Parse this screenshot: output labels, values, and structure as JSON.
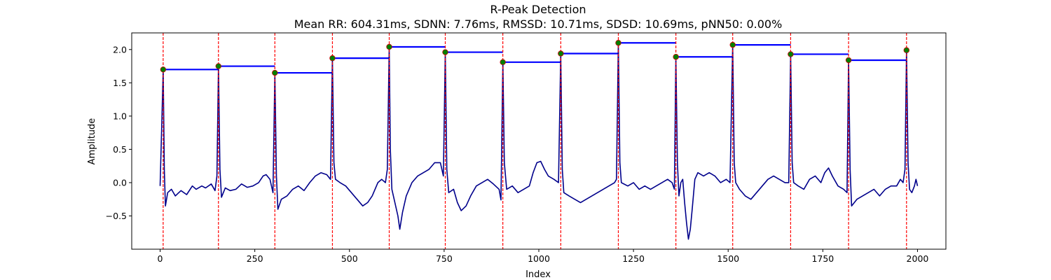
{
  "chart_data": {
    "type": "line",
    "title": "R-Peak Detection",
    "subtitle": "Mean RR: 604.31ms, SDNN: 7.76ms, RMSSD: 10.71ms, SDSD: 10.69ms, pNN50: 0.00%",
    "xlabel": "Index",
    "ylabel": "Amplitude",
    "xlim": [
      -75,
      2075
    ],
    "ylim": [
      -1.0,
      2.25
    ],
    "x_ticks": [
      0,
      250,
      500,
      750,
      1000,
      1250,
      1500,
      1750,
      2000
    ],
    "y_ticks": [
      -0.5,
      0.0,
      0.5,
      1.0,
      1.5,
      2.0
    ],
    "x_tick_labels": [
      "0",
      "250",
      "500",
      "750",
      "1000",
      "1250",
      "1500",
      "1750",
      "2000"
    ],
    "y_tick_labels": [
      "−0.5",
      "0.0",
      "0.5",
      "1.0",
      "1.5",
      "2.0"
    ],
    "grid": false,
    "colors": {
      "signal": "#00008b",
      "peak_line": "#ff0000",
      "peak_marker_fill": "#008000",
      "peak_marker_edge": "#cc0000",
      "rr_segment": "#0000ff"
    },
    "signal_samples": [
      [
        0,
        -0.05
      ],
      [
        4,
        0.8
      ],
      [
        8,
        1.7
      ],
      [
        11,
        0.2
      ],
      [
        14,
        -0.35
      ],
      [
        20,
        -0.15
      ],
      [
        30,
        -0.1
      ],
      [
        40,
        -0.2
      ],
      [
        55,
        -0.12
      ],
      [
        70,
        -0.18
      ],
      [
        85,
        -0.05
      ],
      [
        95,
        -0.1
      ],
      [
        110,
        -0.05
      ],
      [
        120,
        -0.08
      ],
      [
        135,
        -0.02
      ],
      [
        145,
        -0.12
      ],
      [
        150,
        0.1
      ],
      [
        154,
        1.75
      ],
      [
        158,
        0.2
      ],
      [
        162,
        -0.22
      ],
      [
        172,
        -0.08
      ],
      [
        185,
        -0.12
      ],
      [
        200,
        -0.1
      ],
      [
        215,
        -0.02
      ],
      [
        230,
        -0.07
      ],
      [
        245,
        -0.05
      ],
      [
        260,
        0.0
      ],
      [
        272,
        0.1
      ],
      [
        280,
        0.12
      ],
      [
        290,
        0.05
      ],
      [
        298,
        -0.15
      ],
      [
        303,
        1.65
      ],
      [
        307,
        0.1
      ],
      [
        311,
        -0.4
      ],
      [
        320,
        -0.25
      ],
      [
        335,
        -0.2
      ],
      [
        350,
        -0.1
      ],
      [
        365,
        -0.05
      ],
      [
        380,
        -0.12
      ],
      [
        395,
        0.0
      ],
      [
        410,
        0.1
      ],
      [
        425,
        0.15
      ],
      [
        440,
        0.12
      ],
      [
        450,
        0.05
      ],
      [
        455,
        1.87
      ],
      [
        459,
        0.3
      ],
      [
        463,
        0.05
      ],
      [
        475,
        0.0
      ],
      [
        490,
        -0.05
      ],
      [
        505,
        -0.15
      ],
      [
        520,
        -0.25
      ],
      [
        535,
        -0.35
      ],
      [
        548,
        -0.3
      ],
      [
        560,
        -0.2
      ],
      [
        575,
        0.0
      ],
      [
        585,
        0.05
      ],
      [
        595,
        0.0
      ],
      [
        600,
        0.2
      ],
      [
        605,
        2.04
      ],
      [
        608,
        0.5
      ],
      [
        612,
        -0.1
      ],
      [
        620,
        -0.3
      ],
      [
        628,
        -0.5
      ],
      [
        633,
        -0.7
      ],
      [
        640,
        -0.45
      ],
      [
        650,
        -0.2
      ],
      [
        665,
        0.0
      ],
      [
        680,
        0.1
      ],
      [
        695,
        0.15
      ],
      [
        710,
        0.2
      ],
      [
        725,
        0.3
      ],
      [
        740,
        0.3
      ],
      [
        748,
        0.1
      ],
      [
        753,
        1.96
      ],
      [
        757,
        0.2
      ],
      [
        762,
        -0.15
      ],
      [
        775,
        -0.1
      ],
      [
        785,
        -0.3
      ],
      [
        795,
        -0.42
      ],
      [
        808,
        -0.35
      ],
      [
        820,
        -0.2
      ],
      [
        835,
        -0.05
      ],
      [
        850,
        0.0
      ],
      [
        865,
        0.05
      ],
      [
        880,
        -0.02
      ],
      [
        895,
        -0.1
      ],
      [
        900,
        -0.26
      ],
      [
        905,
        1.81
      ],
      [
        909,
        0.3
      ],
      [
        915,
        -0.1
      ],
      [
        930,
        -0.05
      ],
      [
        945,
        -0.15
      ],
      [
        960,
        -0.1
      ],
      [
        975,
        -0.05
      ],
      [
        985,
        0.15
      ],
      [
        995,
        0.3
      ],
      [
        1005,
        0.32
      ],
      [
        1015,
        0.2
      ],
      [
        1025,
        0.1
      ],
      [
        1040,
        0.05
      ],
      [
        1052,
        0.0
      ],
      [
        1058,
        1.94
      ],
      [
        1062,
        0.2
      ],
      [
        1066,
        -0.15
      ],
      [
        1080,
        -0.2
      ],
      [
        1095,
        -0.25
      ],
      [
        1110,
        -0.3
      ],
      [
        1125,
        -0.25
      ],
      [
        1140,
        -0.2
      ],
      [
        1155,
        -0.15
      ],
      [
        1170,
        -0.1
      ],
      [
        1185,
        -0.05
      ],
      [
        1200,
        0.0
      ],
      [
        1205,
        0.05
      ],
      [
        1210,
        2.1
      ],
      [
        1214,
        0.3
      ],
      [
        1218,
        0.0
      ],
      [
        1235,
        -0.05
      ],
      [
        1250,
        0.0
      ],
      [
        1265,
        -0.1
      ],
      [
        1280,
        -0.05
      ],
      [
        1295,
        -0.1
      ],
      [
        1310,
        -0.05
      ],
      [
        1325,
        0.0
      ],
      [
        1340,
        0.05
      ],
      [
        1352,
        0.0
      ],
      [
        1358,
        -0.1
      ],
      [
        1362,
        1.89
      ],
      [
        1366,
        0.3
      ],
      [
        1370,
        -0.2
      ],
      [
        1375,
        0.0
      ],
      [
        1380,
        0.05
      ],
      [
        1385,
        -0.3
      ],
      [
        1390,
        -0.6
      ],
      [
        1395,
        -0.85
      ],
      [
        1400,
        -0.7
      ],
      [
        1405,
        -0.4
      ],
      [
        1412,
        0.05
      ],
      [
        1420,
        0.15
      ],
      [
        1435,
        0.1
      ],
      [
        1450,
        0.15
      ],
      [
        1465,
        0.1
      ],
      [
        1480,
        0.0
      ],
      [
        1495,
        0.05
      ],
      [
        1505,
        0.0
      ],
      [
        1512,
        2.07
      ],
      [
        1516,
        0.3
      ],
      [
        1520,
        0.0
      ],
      [
        1530,
        -0.1
      ],
      [
        1545,
        -0.2
      ],
      [
        1560,
        -0.25
      ],
      [
        1575,
        -0.15
      ],
      [
        1590,
        -0.05
      ],
      [
        1605,
        0.05
      ],
      [
        1620,
        0.1
      ],
      [
        1635,
        0.05
      ],
      [
        1650,
        0.0
      ],
      [
        1660,
        0.0
      ],
      [
        1665,
        1.93
      ],
      [
        1669,
        0.3
      ],
      [
        1673,
        0.0
      ],
      [
        1685,
        -0.05
      ],
      [
        1700,
        -0.1
      ],
      [
        1715,
        0.05
      ],
      [
        1730,
        0.1
      ],
      [
        1745,
        0.0
      ],
      [
        1755,
        0.15
      ],
      [
        1765,
        0.22
      ],
      [
        1775,
        0.1
      ],
      [
        1790,
        -0.05
      ],
      [
        1805,
        -0.1
      ],
      [
        1814,
        -0.15
      ],
      [
        1818,
        1.84
      ],
      [
        1822,
        0.2
      ],
      [
        1826,
        -0.35
      ],
      [
        1840,
        -0.25
      ],
      [
        1855,
        -0.2
      ],
      [
        1870,
        -0.15
      ],
      [
        1885,
        -0.1
      ],
      [
        1900,
        -0.2
      ],
      [
        1915,
        -0.1
      ],
      [
        1930,
        -0.05
      ],
      [
        1945,
        -0.05
      ],
      [
        1955,
        0.05
      ],
      [
        1962,
        0.0
      ],
      [
        1967,
        0.2
      ],
      [
        1971,
        1.99
      ],
      [
        1975,
        0.3
      ],
      [
        1979,
        -0.1
      ],
      [
        1985,
        -0.15
      ],
      [
        1992,
        -0.05
      ],
      [
        1996,
        0.05
      ],
      [
        2000,
        -0.05
      ]
    ],
    "r_peaks": [
      {
        "x": 8,
        "y": 1.7
      },
      {
        "x": 154,
        "y": 1.75
      },
      {
        "x": 303,
        "y": 1.65
      },
      {
        "x": 455,
        "y": 1.87
      },
      {
        "x": 605,
        "y": 2.04
      },
      {
        "x": 753,
        "y": 1.96
      },
      {
        "x": 905,
        "y": 1.81
      },
      {
        "x": 1058,
        "y": 1.94
      },
      {
        "x": 1210,
        "y": 2.1
      },
      {
        "x": 1362,
        "y": 1.89
      },
      {
        "x": 1512,
        "y": 2.07
      },
      {
        "x": 1665,
        "y": 1.93
      },
      {
        "x": 1818,
        "y": 1.84
      },
      {
        "x": 1971,
        "y": 1.99
      }
    ]
  }
}
